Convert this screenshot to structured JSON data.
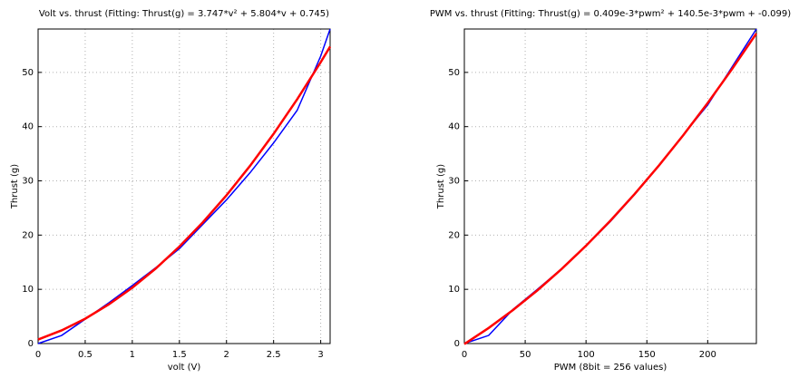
{
  "chart_data": [
    {
      "type": "line",
      "title": "Volt vs. thrust (Fitting: Thrust(g) = 3.747*v² + 5.804*v + 0.745)",
      "x_label": "volt (V)",
      "y_label": "Thrust (g)",
      "x": [
        0,
        0.25,
        0.5,
        0.75,
        1,
        1.25,
        1.5,
        1.75,
        2,
        2.25,
        2.5,
        2.75,
        3,
        3.1
      ],
      "series": [
        {
          "color": "#0000ff",
          "values": [
            0,
            1.5,
            4.5,
            7.5,
            10.7,
            14,
            17.5,
            22,
            26.5,
            31.5,
            37,
            43,
            53,
            58
          ]
        },
        {
          "color": "#ff0000",
          "values": [
            0.745,
            2.43,
            4.58,
            7.21,
            10.3,
            13.85,
            17.88,
            22.38,
            27.34,
            32.77,
            38.67,
            45.04,
            51.88,
            54.75
          ]
        }
      ],
      "xlim": [
        0,
        3.1
      ],
      "xticks": [
        0,
        0.5,
        1,
        1.5,
        2,
        2.5,
        3
      ],
      "ylim": [
        0,
        58
      ],
      "yticks": [
        0,
        10,
        20,
        30,
        40,
        50
      ],
      "grid": true
    },
    {
      "type": "line",
      "title": "PWM vs. thrust (Fitting: Thrust(g) = 0.409e-3*pwm² + 140.5e-3*pwm + -0.099)",
      "x_label": "PWM (8bit = 256 values)",
      "y_label": "Thrust (g)",
      "x": [
        0,
        20,
        40,
        60,
        80,
        100,
        120,
        140,
        160,
        180,
        200,
        220,
        240
      ],
      "series": [
        {
          "color": "#0000ff",
          "values": [
            0,
            1.5,
            6.3,
            10,
            13.8,
            18,
            22.5,
            27.5,
            32.8,
            38.5,
            44,
            51,
            58
          ]
        },
        {
          "color": "#ff0000",
          "values": [
            -0.099,
            2.875,
            6.18,
            9.8,
            13.76,
            18.04,
            22.65,
            27.59,
            32.85,
            38.44,
            44.36,
            50.61,
            57.18
          ]
        }
      ],
      "xlim": [
        0,
        240
      ],
      "xticks": [
        0,
        50,
        100,
        150,
        200
      ],
      "ylim": [
        0,
        58
      ],
      "yticks": [
        0,
        10,
        20,
        30,
        40,
        50
      ],
      "grid": true
    }
  ]
}
